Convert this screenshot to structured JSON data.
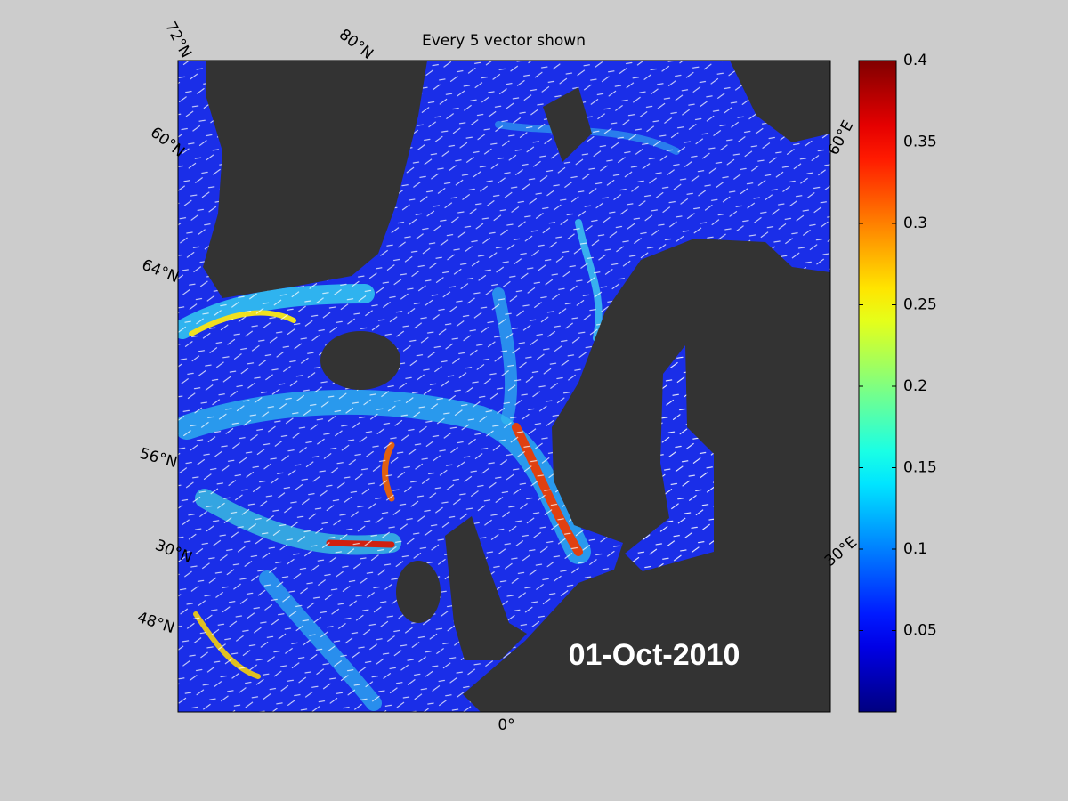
{
  "map": {
    "title": "Every 5 vector shown",
    "graticule_labels": [
      "72°N",
      "80°N",
      "60°N",
      "64°N",
      "56°N",
      "30°N",
      "48°N",
      "0°",
      "60°E",
      "30°E"
    ],
    "date_label": "01-Oct-2010",
    "colorbar": {
      "colormap": "jet",
      "lim": [
        0,
        0.4
      ],
      "ticks": [
        0.05,
        0.1,
        0.15,
        0.2,
        0.25,
        0.3,
        0.35,
        0.4
      ]
    }
  }
}
